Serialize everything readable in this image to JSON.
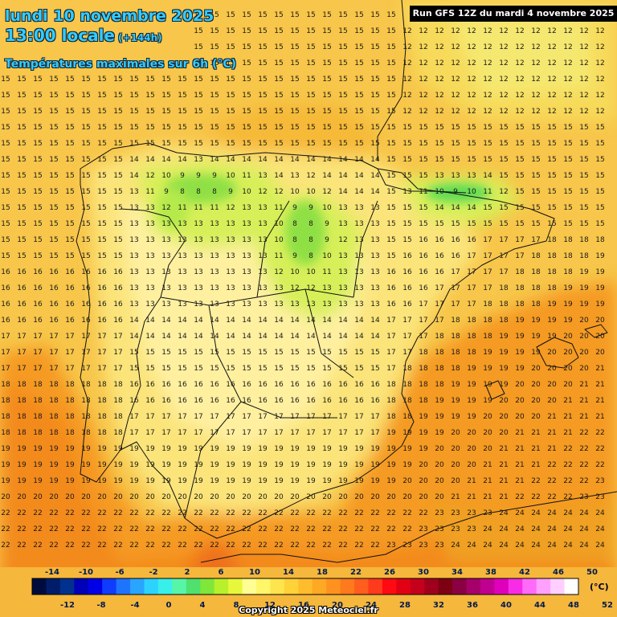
{
  "header": {
    "date": "lundi 10 novembre 2025",
    "time": "13:00 locale",
    "lead": "(+144h)",
    "variable": "Températures maximales sur 6h (°C)",
    "run": "Run GFS 12Z du mardi 4 novembre 2025"
  },
  "legend": {
    "unit": "(°C)",
    "top_labels": [
      "-14",
      "-10",
      "-6",
      "-2",
      "2",
      "6",
      "10",
      "14",
      "18",
      "22",
      "26",
      "30",
      "34",
      "38",
      "42",
      "46",
      "50"
    ],
    "bottom_labels": [
      "-12",
      "-8",
      "-4",
      "0",
      "4",
      "8",
      "12",
      "16",
      "20",
      "24",
      "28",
      "32",
      "36",
      "40",
      "44",
      "48",
      "52"
    ],
    "colors": [
      "#000b3d",
      "#011d6a",
      "#01308f",
      "#0000b8",
      "#0000e6",
      "#0f3cff",
      "#1f74ff",
      "#2aa5ff",
      "#2cd3ff",
      "#37f0ea",
      "#57f5a8",
      "#4fe06e",
      "#7fe63a",
      "#b9f02c",
      "#e7f83b",
      "#fffe93",
      "#fff66a",
      "#ffe44d",
      "#ffd23a",
      "#ffbd2e",
      "#ffa824",
      "#ff921f",
      "#ff7a1c",
      "#ff5e1e",
      "#ff3a1d",
      "#ff0a12",
      "#e20014",
      "#c4001c",
      "#a0001d",
      "#7d0013",
      "#8a0042",
      "#a6006a",
      "#c00090",
      "#df00bb",
      "#f82ce6",
      "#ff6af8",
      "#ffa0ff",
      "#ffd0ff",
      "#ffffff"
    ]
  },
  "map": {
    "region": "Iberian Peninsula"
  },
  "copyright": "Copyright 2025 Meteociel.fr"
}
